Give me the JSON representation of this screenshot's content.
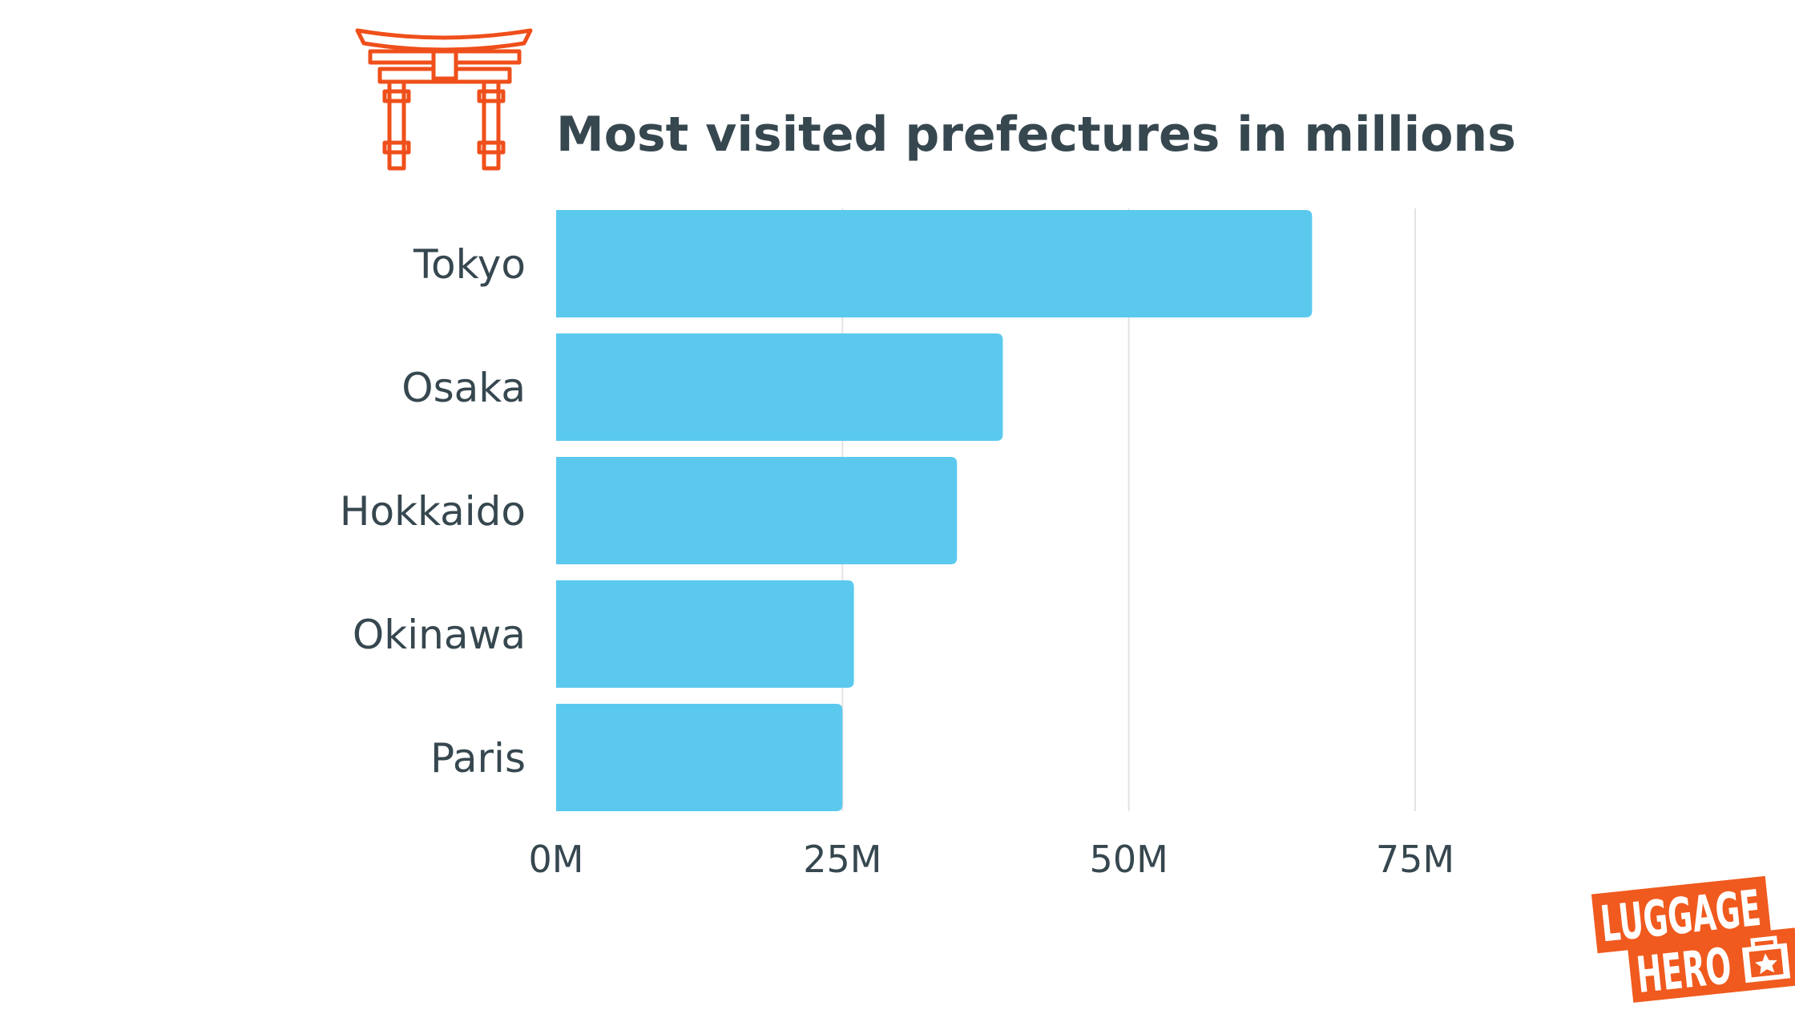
{
  "colors": {
    "bar": "#5bc9ee",
    "text": "#36474f",
    "grid": "#e3e3e3",
    "accent": "#ef4f1b",
    "logo_bg": "#f05a1e"
  },
  "icons": {
    "gate": "torii-gate-icon",
    "logo": "luggage-hero-logo"
  },
  "chart_data": {
    "type": "bar",
    "orientation": "horizontal",
    "title": "Most visited prefectures in millions",
    "categories": [
      "Tokyo",
      "Osaka",
      "Hokkaido",
      "Okinawa",
      "Paris"
    ],
    "values": [
      66,
      39,
      35,
      26,
      25
    ],
    "x_ticks": [
      "0M",
      "25M",
      "50M",
      "75M"
    ],
    "x_tick_values": [
      0,
      25,
      50,
      75
    ],
    "xlim": [
      0,
      75
    ],
    "grid": true,
    "legend": "none"
  },
  "logo": {
    "line1": "LUGGAGE",
    "line2": "HERO"
  }
}
